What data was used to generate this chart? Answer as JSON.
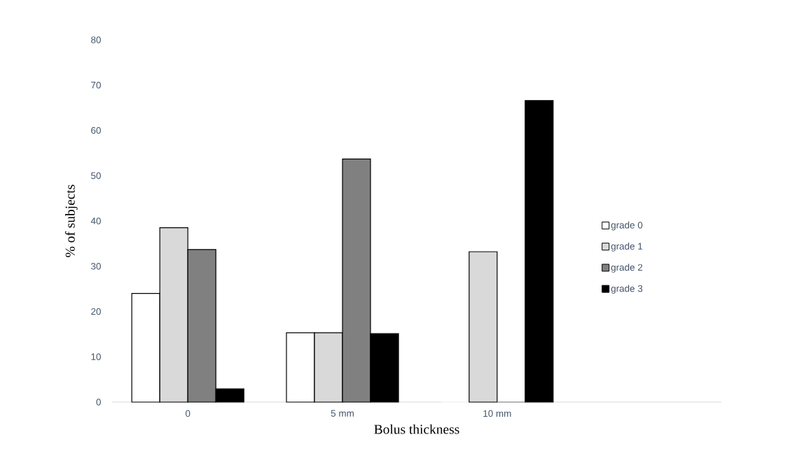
{
  "chart_data": {
    "type": "bar",
    "xlabel": "Bolus thickness",
    "ylabel": "% of subjects",
    "categories": [
      "0",
      "5 mm",
      "10 mm"
    ],
    "series": [
      {
        "name": "grade 0",
        "color": "#ffffff",
        "values": [
          24.0,
          15.3,
          0
        ]
      },
      {
        "name": "grade 1",
        "color": "#d9d9d9",
        "values": [
          38.5,
          15.3,
          33.2
        ]
      },
      {
        "name": "grade 2",
        "color": "#808080",
        "values": [
          33.7,
          53.7,
          0
        ]
      },
      {
        "name": "grade 3",
        "color": "#000000",
        "values": [
          2.9,
          15.1,
          66.6
        ]
      }
    ],
    "ylim": [
      0,
      80
    ],
    "yticks": [
      0,
      10,
      20,
      30,
      40,
      50,
      60,
      70,
      80
    ],
    "grid": false,
    "legend": "right"
  }
}
